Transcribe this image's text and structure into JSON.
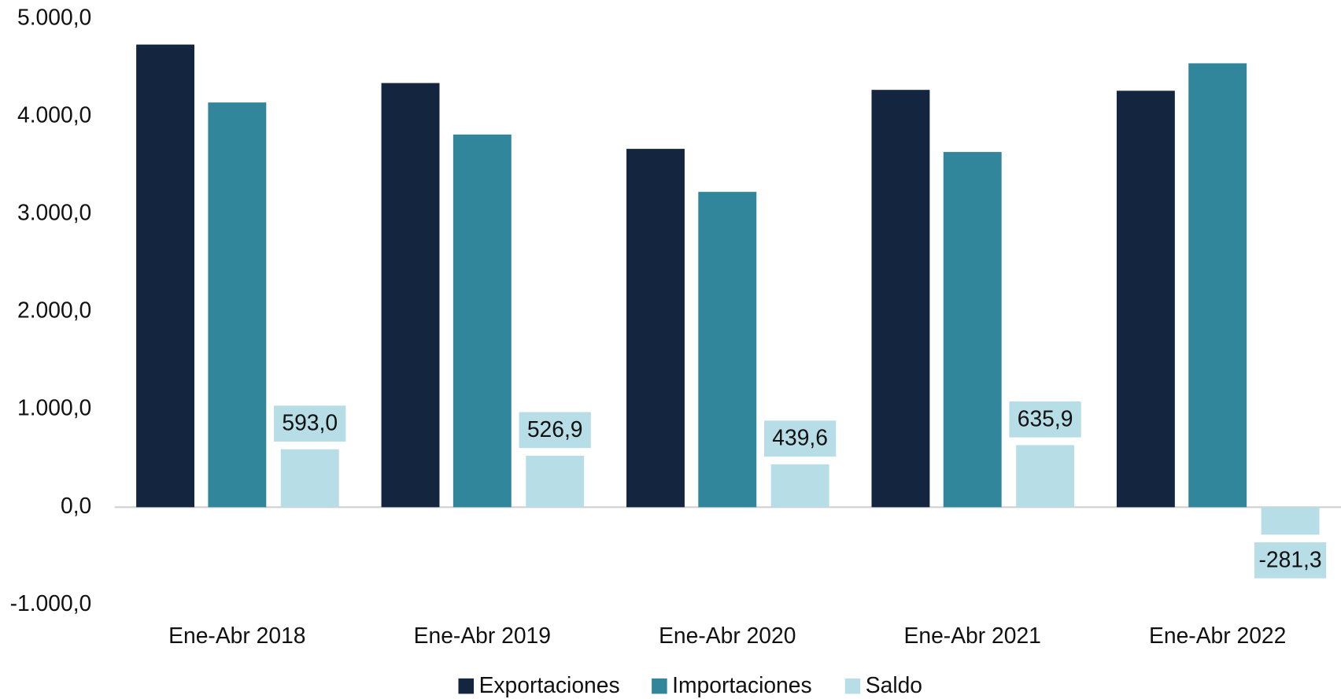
{
  "chart_data": {
    "type": "bar",
    "categories": [
      "Ene-Abr 2018",
      "Ene-Abr 2019",
      "Ene-Abr 2020",
      "Ene-Abr 2021",
      "Ene-Abr 2022"
    ],
    "series": [
      {
        "name": "Exportaciones",
        "color": "#14253f",
        "values": [
          4737,
          4343,
          3669,
          4273,
          4264
        ]
      },
      {
        "name": "Importaciones",
        "color": "#31869b",
        "values": [
          4144,
          3816,
          3229,
          3637,
          4545
        ]
      },
      {
        "name": "Saldo",
        "color": "#b7dde7",
        "values": [
          593.0,
          526.9,
          439.6,
          635.9,
          -281.3
        ],
        "value_labels": [
          "593,0",
          "526,9",
          "439,6",
          "635,9",
          "-281,3"
        ]
      }
    ],
    "ylim": [
      -1000,
      5000
    ],
    "yticks": [
      {
        "value": -1000,
        "label": "-1.000,0"
      },
      {
        "value": 0,
        "label": "0,0"
      },
      {
        "value": 1000,
        "label": "1.000,0"
      },
      {
        "value": 2000,
        "label": "2.000,0"
      },
      {
        "value": 3000,
        "label": "3.000,0"
      },
      {
        "value": 4000,
        "label": "4.000,0"
      },
      {
        "value": 5000,
        "label": "5.000,0"
      }
    ],
    "legend": "bottom",
    "grid": false
  }
}
